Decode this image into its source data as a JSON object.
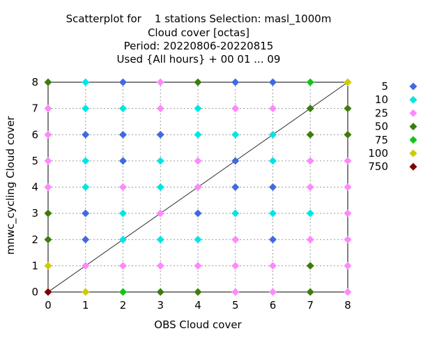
{
  "title_lines": [
    "Scatterplot for    1 stations Selection: masl_1000m",
    "Cloud cover [octas]",
    "Period: 20220806-20220815",
    "Used {All hours} + 00 01 ... 09"
  ],
  "chart_data": {
    "type": "scatter",
    "title": "Scatterplot for    1 stations Selection: masl_1000m / Cloud cover [octas] / Period: 20220806-20220815 / Used {All hours} + 00 01 ... 09",
    "xlabel": "OBS Cloud cover",
    "ylabel": "mnwc_cycling Cloud cover",
    "xlim": [
      0,
      8
    ],
    "ylim": [
      0,
      8
    ],
    "xticks": [
      "0",
      "1",
      "2",
      "3",
      "4",
      "5",
      "6",
      "7",
      "8"
    ],
    "yticks": [
      "0",
      "1",
      "2",
      "3",
      "4",
      "5",
      "6",
      "7",
      "8"
    ],
    "grid": true,
    "diagonal": true,
    "legend_position": "right",
    "legend": [
      {
        "label": "5",
        "color": "#4169e1"
      },
      {
        "label": "10",
        "color": "#00e5e5"
      },
      {
        "label": "25",
        "color": "#ff88ff"
      },
      {
        "label": "50",
        "color": "#3d7d0d"
      },
      {
        "label": "75",
        "color": "#11c611"
      },
      {
        "label": "100",
        "color": "#cccc00"
      },
      {
        "label": "750",
        "color": "#7f0000"
      }
    ],
    "points": [
      {
        "x": 0,
        "y": 8,
        "c": "50"
      },
      {
        "x": 1,
        "y": 8,
        "c": "10"
      },
      {
        "x": 2,
        "y": 8,
        "c": "5"
      },
      {
        "x": 3,
        "y": 8,
        "c": "25"
      },
      {
        "x": 4,
        "y": 8,
        "c": "50"
      },
      {
        "x": 5,
        "y": 8,
        "c": "5"
      },
      {
        "x": 6,
        "y": 8,
        "c": "5"
      },
      {
        "x": 7,
        "y": 8,
        "c": "75"
      },
      {
        "x": 8,
        "y": 8,
        "c": "100"
      },
      {
        "x": 0,
        "y": 7,
        "c": "25"
      },
      {
        "x": 1,
        "y": 7,
        "c": "10"
      },
      {
        "x": 2,
        "y": 7,
        "c": "10"
      },
      {
        "x": 3,
        "y": 7,
        "c": "25"
      },
      {
        "x": 4,
        "y": 7,
        "c": "10"
      },
      {
        "x": 5,
        "y": 7,
        "c": "25"
      },
      {
        "x": 6,
        "y": 7,
        "c": "25"
      },
      {
        "x": 7,
        "y": 7,
        "c": "50"
      },
      {
        "x": 8,
        "y": 7,
        "c": "50"
      },
      {
        "x": 0,
        "y": 6,
        "c": "25"
      },
      {
        "x": 1,
        "y": 6,
        "c": "5"
      },
      {
        "x": 2,
        "y": 6,
        "c": "5"
      },
      {
        "x": 3,
        "y": 6,
        "c": "5"
      },
      {
        "x": 4,
        "y": 6,
        "c": "10"
      },
      {
        "x": 5,
        "y": 6,
        "c": "10"
      },
      {
        "x": 6,
        "y": 6,
        "c": "10"
      },
      {
        "x": 7,
        "y": 6,
        "c": "50"
      },
      {
        "x": 8,
        "y": 6,
        "c": "50"
      },
      {
        "x": 0,
        "y": 5,
        "c": "25"
      },
      {
        "x": 1,
        "y": 5,
        "c": "10"
      },
      {
        "x": 2,
        "y": 5,
        "c": "5"
      },
      {
        "x": 3,
        "y": 5,
        "c": "10"
      },
      {
        "x": 4,
        "y": 5,
        "c": "25"
      },
      {
        "x": 5,
        "y": 5,
        "c": "5"
      },
      {
        "x": 6,
        "y": 5,
        "c": "10"
      },
      {
        "x": 7,
        "y": 5,
        "c": "25"
      },
      {
        "x": 8,
        "y": 5,
        "c": "25"
      },
      {
        "x": 0,
        "y": 4,
        "c": "25"
      },
      {
        "x": 1,
        "y": 4,
        "c": "10"
      },
      {
        "x": 2,
        "y": 4,
        "c": "25"
      },
      {
        "x": 3,
        "y": 4,
        "c": "10"
      },
      {
        "x": 4,
        "y": 4,
        "c": "25"
      },
      {
        "x": 5,
        "y": 4,
        "c": "5"
      },
      {
        "x": 6,
        "y": 4,
        "c": "5"
      },
      {
        "x": 7,
        "y": 4,
        "c": "25"
      },
      {
        "x": 8,
        "y": 4,
        "c": "25"
      },
      {
        "x": 0,
        "y": 3,
        "c": "50"
      },
      {
        "x": 1,
        "y": 3,
        "c": "5"
      },
      {
        "x": 2,
        "y": 3,
        "c": "10"
      },
      {
        "x": 3,
        "y": 3,
        "c": "25"
      },
      {
        "x": 4,
        "y": 3,
        "c": "5"
      },
      {
        "x": 5,
        "y": 3,
        "c": "10"
      },
      {
        "x": 6,
        "y": 3,
        "c": "10"
      },
      {
        "x": 7,
        "y": 3,
        "c": "10"
      },
      {
        "x": 8,
        "y": 3,
        "c": "25"
      },
      {
        "x": 0,
        "y": 2,
        "c": "50"
      },
      {
        "x": 1,
        "y": 2,
        "c": "5"
      },
      {
        "x": 2,
        "y": 2,
        "c": "10"
      },
      {
        "x": 3,
        "y": 2,
        "c": "10"
      },
      {
        "x": 4,
        "y": 2,
        "c": "10"
      },
      {
        "x": 5,
        "y": 2,
        "c": "25"
      },
      {
        "x": 6,
        "y": 2,
        "c": "5"
      },
      {
        "x": 7,
        "y": 2,
        "c": "25"
      },
      {
        "x": 8,
        "y": 2,
        "c": "25"
      },
      {
        "x": 0,
        "y": 1,
        "c": "100"
      },
      {
        "x": 1,
        "y": 1,
        "c": "25"
      },
      {
        "x": 2,
        "y": 1,
        "c": "25"
      },
      {
        "x": 3,
        "y": 1,
        "c": "25"
      },
      {
        "x": 4,
        "y": 1,
        "c": "25"
      },
      {
        "x": 5,
        "y": 1,
        "c": "25"
      },
      {
        "x": 6,
        "y": 1,
        "c": "25"
      },
      {
        "x": 7,
        "y": 1,
        "c": "50"
      },
      {
        "x": 8,
        "y": 1,
        "c": "25"
      },
      {
        "x": 0,
        "y": 0,
        "c": "750"
      },
      {
        "x": 1,
        "y": 0,
        "c": "100"
      },
      {
        "x": 2,
        "y": 0,
        "c": "75"
      },
      {
        "x": 3,
        "y": 0,
        "c": "50"
      },
      {
        "x": 4,
        "y": 0,
        "c": "50"
      },
      {
        "x": 5,
        "y": 0,
        "c": "25"
      },
      {
        "x": 6,
        "y": 0,
        "c": "25"
      },
      {
        "x": 7,
        "y": 0,
        "c": "50"
      },
      {
        "x": 8,
        "y": 0,
        "c": "25"
      }
    ]
  }
}
